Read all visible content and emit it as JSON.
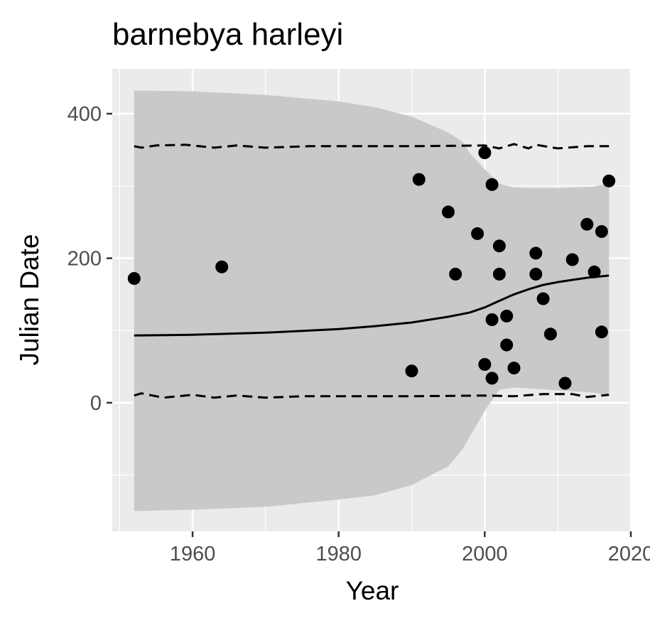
{
  "chart_data": {
    "type": "scatter",
    "title": "barnebya harleyi",
    "xlabel": "Year",
    "ylabel": "Julian Date",
    "xlim": [
      1949,
      2020
    ],
    "ylim": [
      -178,
      462
    ],
    "x_ticks": [
      1960,
      1980,
      2000,
      2020
    ],
    "x_tick_labels": [
      "1960",
      "1980",
      "2000",
      "2020"
    ],
    "y_ticks": [
      0,
      200,
      400
    ],
    "y_tick_labels": [
      "0",
      "200",
      "400"
    ],
    "grid": true,
    "legend": "none",
    "colors": {
      "panel": "#ebebeb",
      "grid": "#ffffff",
      "ribbon": "#c9c9c9",
      "points": "#000000",
      "lines": "#000000"
    },
    "points": [
      {
        "x": 1952,
        "y": 172
      },
      {
        "x": 1964,
        "y": 188
      },
      {
        "x": 1990,
        "y": 44
      },
      {
        "x": 1991,
        "y": 309
      },
      {
        "x": 1995,
        "y": 264
      },
      {
        "x": 1996,
        "y": 178
      },
      {
        "x": 1999,
        "y": 234
      },
      {
        "x": 2000,
        "y": 53
      },
      {
        "x": 2000,
        "y": 346
      },
      {
        "x": 2001,
        "y": 34
      },
      {
        "x": 2001,
        "y": 115
      },
      {
        "x": 2001,
        "y": 302
      },
      {
        "x": 2002,
        "y": 217
      },
      {
        "x": 2002,
        "y": 178
      },
      {
        "x": 2003,
        "y": 120
      },
      {
        "x": 2003,
        "y": 80
      },
      {
        "x": 2004,
        "y": 48
      },
      {
        "x": 2007,
        "y": 207
      },
      {
        "x": 2007,
        "y": 178
      },
      {
        "x": 2008,
        "y": 144
      },
      {
        "x": 2009,
        "y": 95
      },
      {
        "x": 2011,
        "y": 27
      },
      {
        "x": 2012,
        "y": 198
      },
      {
        "x": 2014,
        "y": 247
      },
      {
        "x": 2015,
        "y": 181
      },
      {
        "x": 2016,
        "y": 237
      },
      {
        "x": 2016,
        "y": 98
      },
      {
        "x": 2017,
        "y": 307
      }
    ],
    "fit_line": {
      "x": [
        1952,
        1960,
        1970,
        1980,
        1985,
        1990,
        1995,
        1998,
        2000,
        2002,
        2004,
        2006,
        2008,
        2010,
        2012,
        2014,
        2017
      ],
      "y": [
        93,
        94,
        97,
        102,
        106,
        111,
        119,
        125,
        132,
        141,
        150,
        157,
        163,
        167,
        170,
        173,
        176
      ]
    },
    "upper_dashed": {
      "x": [
        1952,
        1953,
        1955,
        1959,
        1963,
        1966,
        1970,
        1976,
        1990,
        2000,
        2002,
        2004,
        2006,
        2007,
        2010,
        2014,
        2017
      ],
      "y": [
        355,
        353,
        356,
        357,
        353,
        356,
        353,
        355,
        355,
        356,
        352,
        358,
        352,
        357,
        352,
        355,
        355
      ]
    },
    "lower_dashed": {
      "x": [
        1952,
        1953,
        1956,
        1960,
        1963,
        1966,
        1970,
        1975,
        1990,
        2000,
        2004,
        2008,
        2012,
        2014,
        2017
      ],
      "y": [
        10,
        13,
        7,
        11,
        7,
        10,
        7,
        9,
        9,
        10,
        9,
        12,
        12,
        8,
        11
      ]
    },
    "ribbon": {
      "x": [
        1952,
        1960,
        1970,
        1980,
        1985,
        1990,
        1995,
        1997,
        1998,
        2000,
        2002,
        2004,
        2006,
        2010,
        2015,
        2017
      ],
      "upper": [
        432,
        431,
        426,
        417,
        409,
        396,
        374,
        361,
        345,
        323,
        303,
        298,
        297,
        297,
        299,
        304
      ],
      "lower": [
        -150,
        -148,
        -144,
        -134,
        -128,
        -114,
        -88,
        -64,
        -46,
        -11,
        18,
        21,
        20,
        17,
        14,
        10
      ]
    }
  }
}
